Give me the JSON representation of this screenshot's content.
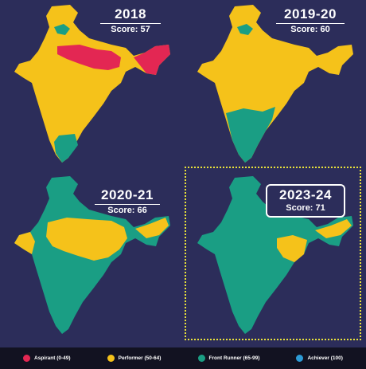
{
  "colors": {
    "background": "#2c2d5a",
    "aspirant": "#e32753",
    "performer": "#f5c21a",
    "front_runner": "#1a9e84",
    "achiever": "#2d9bd6",
    "highlight_frame": "#e9e23a"
  },
  "panels": [
    {
      "year": "2018",
      "score": "Score: 57"
    },
    {
      "year": "2019-20",
      "score": "Score: 60"
    },
    {
      "year": "2020-21",
      "score": "Score: 66"
    },
    {
      "year": "2023-24",
      "score": "Score: 71"
    }
  ],
  "legend": [
    {
      "label": "Aspirant (0-49)",
      "color": "#e32753"
    },
    {
      "label": "Performer (50-64)",
      "color": "#f5c21a"
    },
    {
      "label": "Front Runner (65-99)",
      "color": "#1a9e84"
    },
    {
      "label": "Achiever (100)",
      "color": "#2d9bd6"
    }
  ]
}
